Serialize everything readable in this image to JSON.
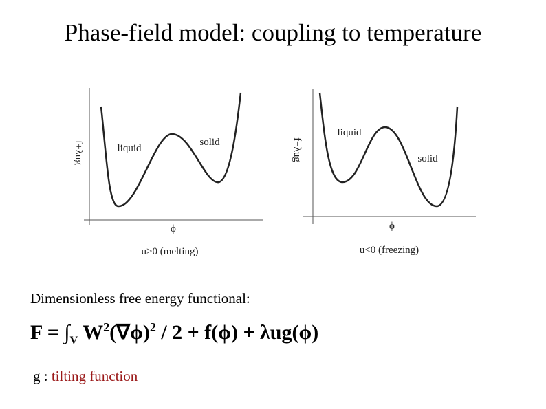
{
  "title": "Phase-field model: coupling to temperature",
  "plots": [
    {
      "y_label": "f+λug",
      "x_label": "ϕ",
      "caption": "u>0 (melting)",
      "annotations": [
        "liquid",
        "solid"
      ]
    },
    {
      "y_label": "f+λug",
      "x_label": "ϕ",
      "caption": "u<0 (freezing)",
      "annotations": [
        "liquid",
        "solid"
      ]
    }
  ],
  "text": "Dimensionless free energy functional:",
  "formula": {
    "lhs": "F = ∫",
    "domain": "V",
    "w": "W",
    "w_power": "2",
    "grad": "(∇ϕ)",
    "grad_power": "2",
    "rest": "/ 2 + f(ϕ) + λug(ϕ)"
  },
  "note": {
    "symbol": "g :",
    "description": "tilting function"
  }
}
